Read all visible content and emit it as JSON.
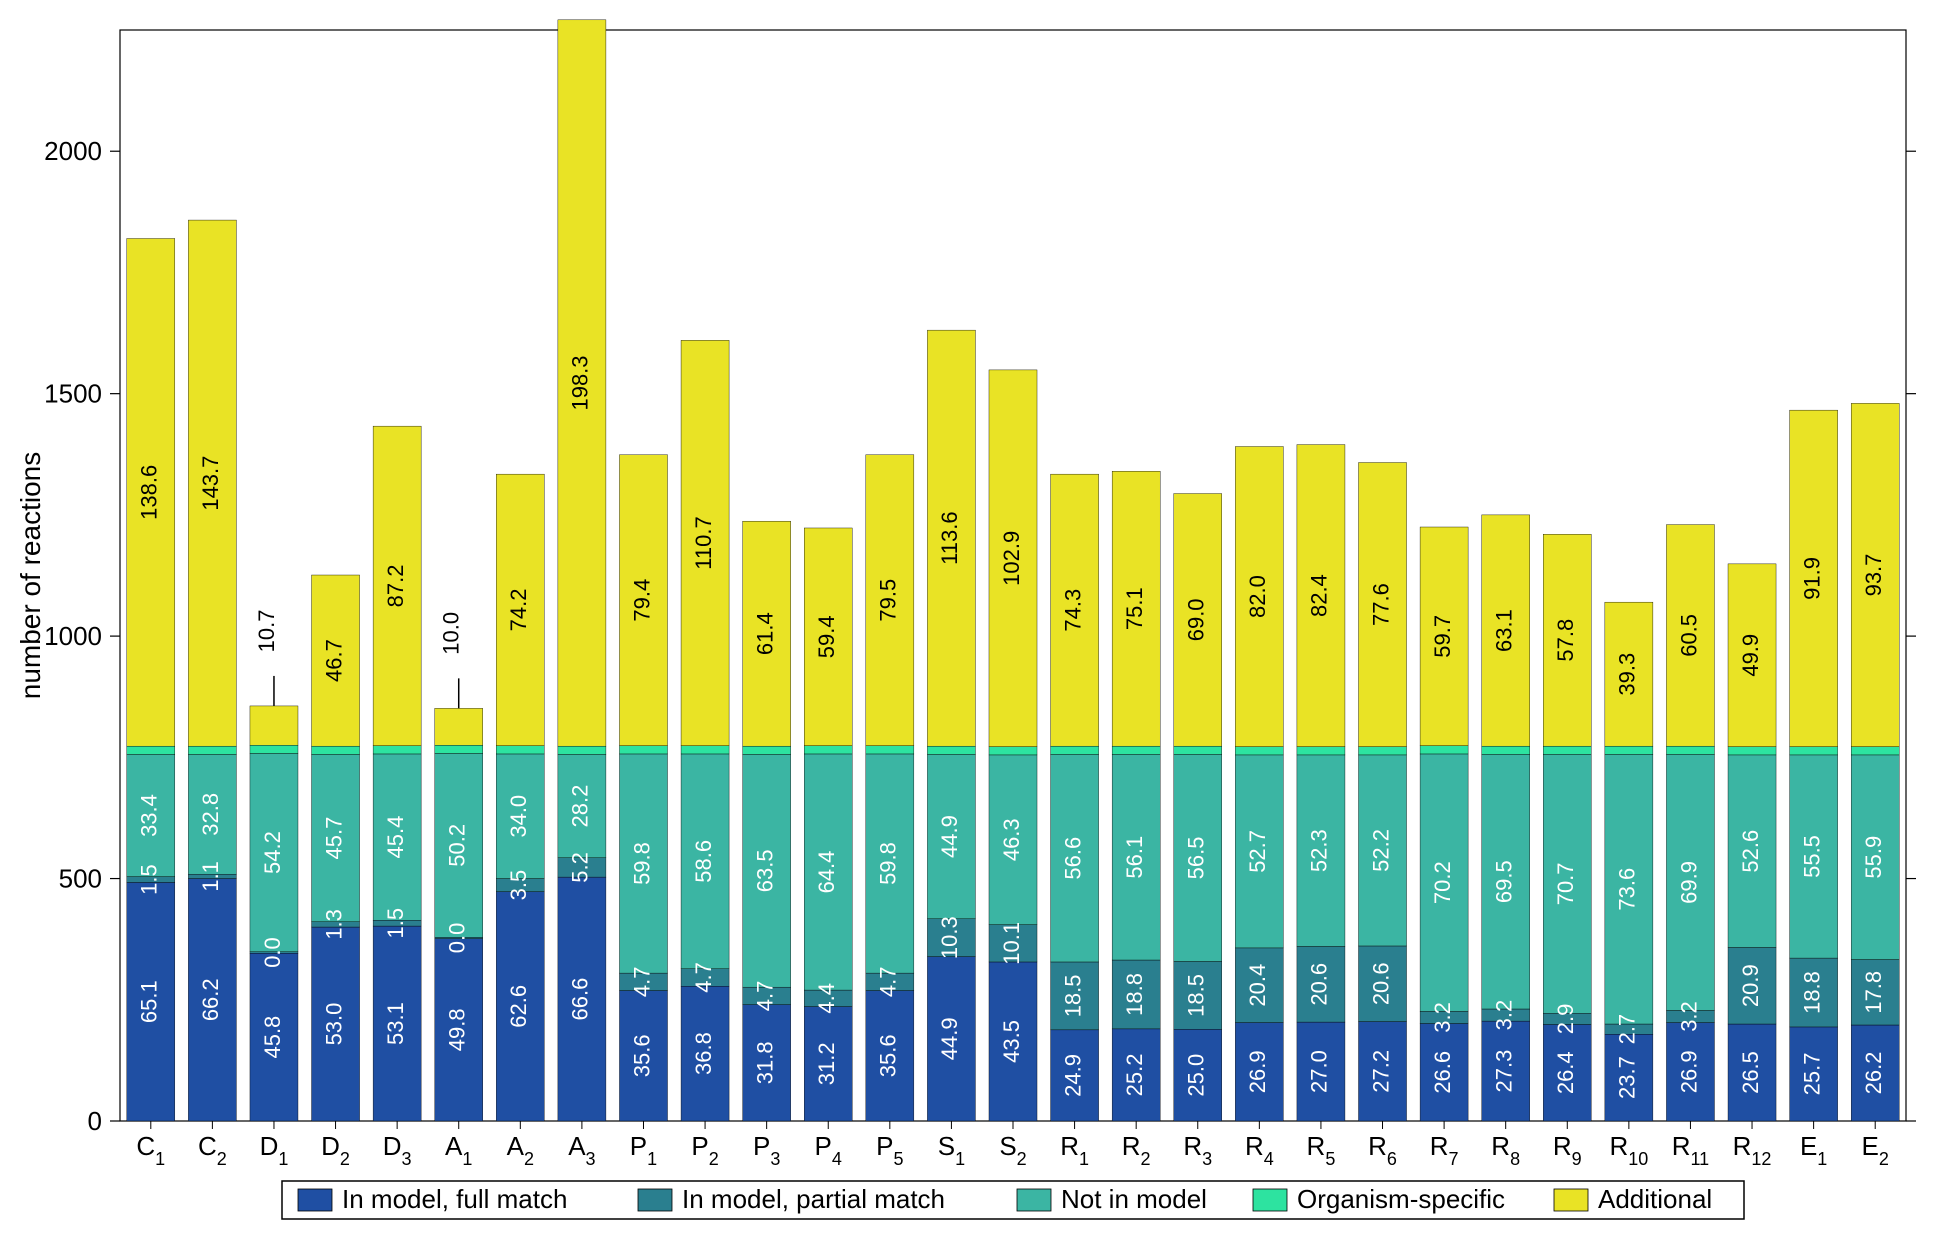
{
  "chart": {
    "type": "stacked-bar",
    "ylabel": "number of reactions",
    "ylim": [
      0,
      2250
    ],
    "yticks": [
      0,
      500,
      1000,
      1500,
      2000
    ],
    "background_color": "#ffffff",
    "axis_color": "#000000",
    "tick_fontsize": 26,
    "label_fontsize": 28,
    "bar_width": 0.78,
    "series": [
      {
        "key": "full",
        "label": "In model, full match",
        "color": "#1f4fa3"
      },
      {
        "key": "partial",
        "label": "In model, partial match",
        "color": "#2a7f8f"
      },
      {
        "key": "notin",
        "label": "Not in model",
        "color": "#3bb5a3"
      },
      {
        "key": "org",
        "label": "Organism-specific",
        "color": "#2de3a0"
      },
      {
        "key": "add",
        "label": "Additional",
        "color": "#e9e325"
      }
    ],
    "categories": [
      {
        "label": "C",
        "sub": "1"
      },
      {
        "label": "C",
        "sub": "2"
      },
      {
        "label": "D",
        "sub": "1"
      },
      {
        "label": "D",
        "sub": "2"
      },
      {
        "label": "D",
        "sub": "3"
      },
      {
        "label": "A",
        "sub": "1"
      },
      {
        "label": "A",
        "sub": "2"
      },
      {
        "label": "A",
        "sub": "3"
      },
      {
        "label": "P",
        "sub": "1"
      },
      {
        "label": "P",
        "sub": "2"
      },
      {
        "label": "P",
        "sub": "3"
      },
      {
        "label": "P",
        "sub": "4"
      },
      {
        "label": "P",
        "sub": "5"
      },
      {
        "label": "S",
        "sub": "1"
      },
      {
        "label": "S",
        "sub": "2"
      },
      {
        "label": "R",
        "sub": "1"
      },
      {
        "label": "R",
        "sub": "2"
      },
      {
        "label": "R",
        "sub": "3"
      },
      {
        "label": "R",
        "sub": "4"
      },
      {
        "label": "R",
        "sub": "5"
      },
      {
        "label": "R",
        "sub": "6"
      },
      {
        "label": "R",
        "sub": "7"
      },
      {
        "label": "R",
        "sub": "8"
      },
      {
        "label": "R",
        "sub": "9"
      },
      {
        "label": "R",
        "sub": "10"
      },
      {
        "label": "R",
        "sub": "11"
      },
      {
        "label": "R",
        "sub": "12"
      },
      {
        "label": "E",
        "sub": "1"
      },
      {
        "label": "E",
        "sub": "2"
      }
    ],
    "data": [
      {
        "full": 492,
        "partial": 12,
        "notin": 252,
        "org": 17,
        "add": 1047,
        "labels": {
          "full": "65.1",
          "partial": "1.5",
          "notin": "33.4",
          "add": "138.6"
        }
      },
      {
        "full": 500,
        "partial": 9,
        "notin": 247,
        "org": 17,
        "add": 1085,
        "labels": {
          "full": "66.2",
          "partial": "1.1",
          "notin": "32.8",
          "add": "143.7"
        }
      },
      {
        "full": 346,
        "partial": 3,
        "notin": 409,
        "org": 17,
        "add": 81,
        "labels": {
          "full": "45.8",
          "partial": "0.0",
          "notin": "54.2",
          "add": "10.7"
        },
        "outside": "add"
      },
      {
        "full": 400,
        "partial": 11,
        "notin": 345,
        "org": 17,
        "add": 353,
        "labels": {
          "full": "53.0",
          "partial": "1.3",
          "notin": "45.7",
          "add": "46.7"
        }
      },
      {
        "full": 402,
        "partial": 12,
        "notin": 343,
        "org": 17,
        "add": 659,
        "labels": {
          "full": "53.1",
          "partial": "1.5",
          "notin": "45.4",
          "add": "87.2"
        }
      },
      {
        "full": 376,
        "partial": 3,
        "notin": 379,
        "org": 17,
        "add": 76,
        "labels": {
          "full": "49.8",
          "partial": "0.0",
          "notin": "50.2",
          "add": "10.0"
        },
        "outside": "add"
      },
      {
        "full": 473,
        "partial": 27,
        "notin": 257,
        "org": 17,
        "add": 560,
        "labels": {
          "full": "62.6",
          "partial": "3.5",
          "notin": "34.0",
          "add": "74.2"
        }
      },
      {
        "full": 503,
        "partial": 40,
        "notin": 213,
        "org": 17,
        "add": 1498,
        "labels": {
          "full": "66.6",
          "partial": "5.2",
          "notin": "28.2",
          "add": "198.3"
        }
      },
      {
        "full": 269,
        "partial": 36,
        "notin": 452,
        "org": 17,
        "add": 600,
        "labels": {
          "full": "35.6",
          "partial": "4.7",
          "notin": "59.8",
          "add": "79.4"
        }
      },
      {
        "full": 278,
        "partial": 36,
        "notin": 443,
        "org": 17,
        "add": 836,
        "labels": {
          "full": "36.8",
          "partial": "4.7",
          "notin": "58.6",
          "add": "110.7"
        }
      },
      {
        "full": 240,
        "partial": 36,
        "notin": 480,
        "org": 17,
        "add": 464,
        "labels": {
          "full": "31.8",
          "partial": "4.7",
          "notin": "63.5",
          "add": "61.4"
        }
      },
      {
        "full": 236,
        "partial": 34,
        "notin": 487,
        "org": 17,
        "add": 449,
        "labels": {
          "full": "31.2",
          "partial": "4.4",
          "notin": "64.4",
          "add": "59.4"
        }
      },
      {
        "full": 269,
        "partial": 36,
        "notin": 452,
        "org": 17,
        "add": 600,
        "labels": {
          "full": "35.6",
          "partial": "4.7",
          "notin": "59.8",
          "add": "79.5"
        }
      },
      {
        "full": 339,
        "partial": 78,
        "notin": 339,
        "org": 17,
        "add": 858,
        "labels": {
          "full": "44.9",
          "partial": "10.3",
          "notin": "44.9",
          "add": "113.6"
        }
      },
      {
        "full": 328,
        "partial": 77,
        "notin": 350,
        "org": 17,
        "add": 777,
        "labels": {
          "full": "43.5",
          "partial": "10.1",
          "notin": "46.3",
          "add": "102.9"
        }
      },
      {
        "full": 188,
        "partial": 140,
        "notin": 428,
        "org": 17,
        "add": 561,
        "labels": {
          "full": "24.9",
          "partial": "18.5",
          "notin": "56.6",
          "add": "74.3"
        }
      },
      {
        "full": 190,
        "partial": 142,
        "notin": 424,
        "org": 17,
        "add": 567,
        "labels": {
          "full": "25.2",
          "partial": "18.8",
          "notin": "56.1",
          "add": "75.1"
        }
      },
      {
        "full": 189,
        "partial": 140,
        "notin": 427,
        "org": 17,
        "add": 521,
        "labels": {
          "full": "25.0",
          "partial": "18.5",
          "notin": "56.5",
          "add": "69.0"
        }
      },
      {
        "full": 203,
        "partial": 154,
        "notin": 398,
        "org": 17,
        "add": 619,
        "labels": {
          "full": "26.9",
          "partial": "20.4",
          "notin": "52.7",
          "add": "82.0"
        }
      },
      {
        "full": 204,
        "partial": 156,
        "notin": 395,
        "org": 17,
        "add": 623,
        "labels": {
          "full": "27.0",
          "partial": "20.6",
          "notin": "52.3",
          "add": "82.4"
        }
      },
      {
        "full": 205,
        "partial": 156,
        "notin": 394,
        "org": 17,
        "add": 586,
        "labels": {
          "full": "27.2",
          "partial": "20.6",
          "notin": "52.2",
          "add": "77.6"
        }
      },
      {
        "full": 201,
        "partial": 25,
        "notin": 531,
        "org": 17,
        "add": 451,
        "labels": {
          "full": "26.6",
          "partial": "3.2",
          "notin": "70.2",
          "add": "59.7"
        }
      },
      {
        "full": 206,
        "partial": 25,
        "notin": 525,
        "org": 17,
        "add": 477,
        "labels": {
          "full": "27.3",
          "partial": "3.2",
          "notin": "69.5",
          "add": "63.1"
        }
      },
      {
        "full": 199,
        "partial": 23,
        "notin": 534,
        "org": 17,
        "add": 437,
        "labels": {
          "full": "26.4",
          "partial": "2.9",
          "notin": "70.7",
          "add": "57.8"
        }
      },
      {
        "full": 179,
        "partial": 21,
        "notin": 556,
        "org": 17,
        "add": 297,
        "labels": {
          "full": "23.7",
          "partial": "2.7",
          "notin": "73.6",
          "add": "39.3"
        }
      },
      {
        "full": 203,
        "partial": 25,
        "notin": 528,
        "org": 17,
        "add": 457,
        "labels": {
          "full": "26.9",
          "partial": "3.2",
          "notin": "69.9",
          "add": "60.5"
        }
      },
      {
        "full": 200,
        "partial": 158,
        "notin": 397,
        "org": 17,
        "add": 377,
        "labels": {
          "full": "26.5",
          "partial": "20.9",
          "notin": "52.6",
          "add": "49.9"
        }
      },
      {
        "full": 194,
        "partial": 142,
        "notin": 419,
        "org": 17,
        "add": 694,
        "labels": {
          "full": "25.7",
          "partial": "18.8",
          "notin": "55.5",
          "add": "91.9"
        }
      },
      {
        "full": 198,
        "partial": 135,
        "notin": 422,
        "org": 17,
        "add": 708,
        "labels": {
          "full": "26.2",
          "partial": "17.8",
          "notin": "55.9",
          "add": "93.7"
        }
      }
    ],
    "legend": {
      "border_color": "#000000",
      "background": "#ffffff"
    }
  }
}
